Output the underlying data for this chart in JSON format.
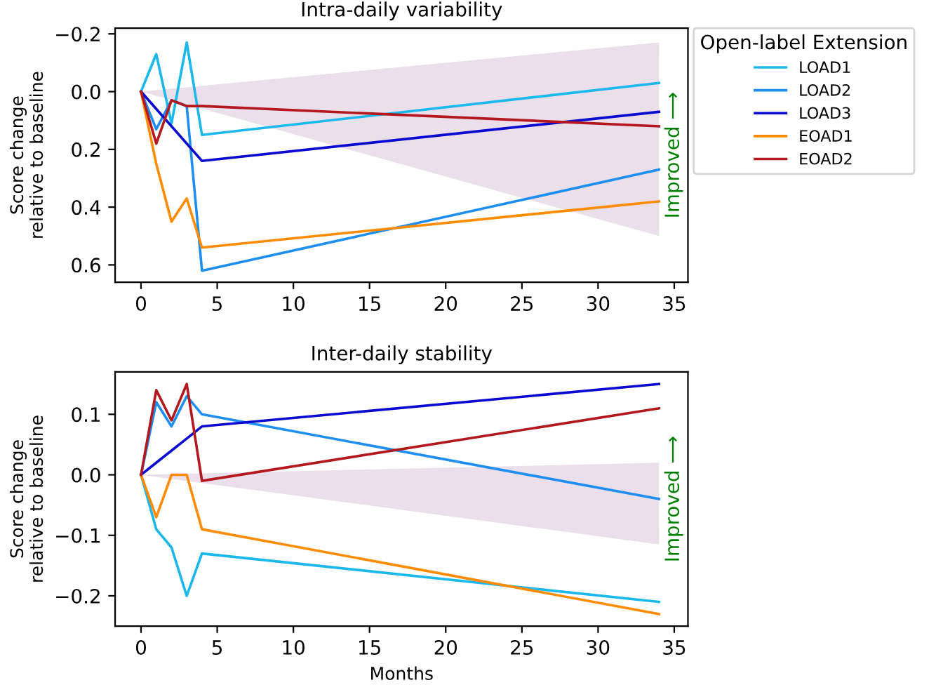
{
  "chart_data": [
    {
      "type": "line",
      "title": "Intra-daily variability",
      "ylabel": "Score change\nrelative to baseline",
      "xlim": [
        -1.7,
        35.9
      ],
      "ylim": [
        0.66,
        -0.22
      ],
      "xticks": [
        0,
        5,
        10,
        15,
        20,
        25,
        30,
        35
      ],
      "yticks": [
        {
          "value": -0.2,
          "label": "−0.2"
        },
        {
          "value": 0.0,
          "label": "0.0"
        },
        {
          "value": 0.2,
          "label": "0.2"
        },
        {
          "value": 0.4,
          "label": "0.4"
        },
        {
          "value": 0.6,
          "label": "0.6"
        }
      ],
      "grid": false,
      "legend": "right",
      "legend_title": "Open-label Extension",
      "annotations": [
        "Improved ⟶"
      ],
      "series": [
        {
          "type": "area",
          "color": "#eadfea",
          "x": [
            0,
            34
          ],
          "values": [
            null,
            null
          ],
          "lower": [
            0,
            0.5
          ],
          "upper": [
            0,
            -0.17
          ]
        },
        {
          "name": "LOAD1",
          "color": "#1cb8ec",
          "x": [
            0,
            1,
            2,
            3,
            4,
            34
          ],
          "values": [
            0,
            -0.13,
            0.11,
            -0.17,
            0.15,
            -0.03
          ]
        },
        {
          "name": "LOAD2",
          "color": "#1e8ff0",
          "x": [
            0,
            1,
            2,
            3,
            4,
            34
          ],
          "values": [
            0,
            0.13,
            0.03,
            0.05,
            0.62,
            0.27
          ]
        },
        {
          "name": "LOAD3",
          "color": "#0a0ad0",
          "x": [
            0,
            4,
            34
          ],
          "values": [
            0,
            0.24,
            0.07
          ]
        },
        {
          "name": "EOAD1",
          "color": "#ff8c00",
          "x": [
            0,
            1,
            2,
            3,
            4,
            34
          ],
          "values": [
            0,
            0.25,
            0.45,
            0.37,
            0.54,
            0.38
          ]
        },
        {
          "name": "EOAD2",
          "color": "#b2181e",
          "x": [
            0,
            1,
            2,
            3,
            4,
            34
          ],
          "values": [
            0,
            0.18,
            0.03,
            0.05,
            0.05,
            0.12
          ]
        }
      ]
    },
    {
      "type": "line",
      "title": "Inter-daily stability",
      "xlabel": "Months",
      "ylabel": "Score change\nrelative to baseline",
      "xlim": [
        -1.7,
        35.9
      ],
      "ylim": [
        -0.25,
        0.17
      ],
      "xticks": [
        0,
        5,
        10,
        15,
        20,
        25,
        30,
        35
      ],
      "yticks": [
        {
          "value": -0.2,
          "label": "−0.2"
        },
        {
          "value": -0.1,
          "label": "−0.1"
        },
        {
          "value": 0.0,
          "label": "0.0"
        },
        {
          "value": 0.1,
          "label": "0.1"
        }
      ],
      "grid": false,
      "annotations": [
        "Improved ⟶"
      ],
      "series": [
        {
          "type": "area",
          "color": "#eadfea",
          "x": [
            0,
            34
          ],
          "values": [
            null,
            null
          ],
          "lower": [
            0,
            -0.115
          ],
          "upper": [
            0,
            0.02
          ]
        },
        {
          "color": "#1cb8ec",
          "x": [
            0,
            1,
            2,
            3,
            4,
            34
          ],
          "values": [
            0,
            -0.09,
            -0.12,
            -0.2,
            -0.13,
            -0.21
          ]
        },
        {
          "color": "#1e8ff0",
          "x": [
            0,
            1,
            2,
            3,
            4,
            34
          ],
          "values": [
            0,
            0.12,
            0.08,
            0.13,
            0.1,
            -0.04
          ]
        },
        {
          "color": "#0a0ad0",
          "x": [
            0,
            4,
            34
          ],
          "values": [
            0,
            0.08,
            0.15
          ]
        },
        {
          "color": "#ff8c00",
          "x": [
            0,
            1,
            2,
            3,
            4,
            34
          ],
          "values": [
            0,
            -0.07,
            0,
            0,
            -0.09,
            -0.23
          ]
        },
        {
          "color": "#b2181e",
          "x": [
            0,
            1,
            2,
            3,
            4,
            34
          ],
          "values": [
            0,
            0.14,
            0.09,
            0.15,
            -0.01,
            0.11
          ]
        }
      ]
    }
  ]
}
